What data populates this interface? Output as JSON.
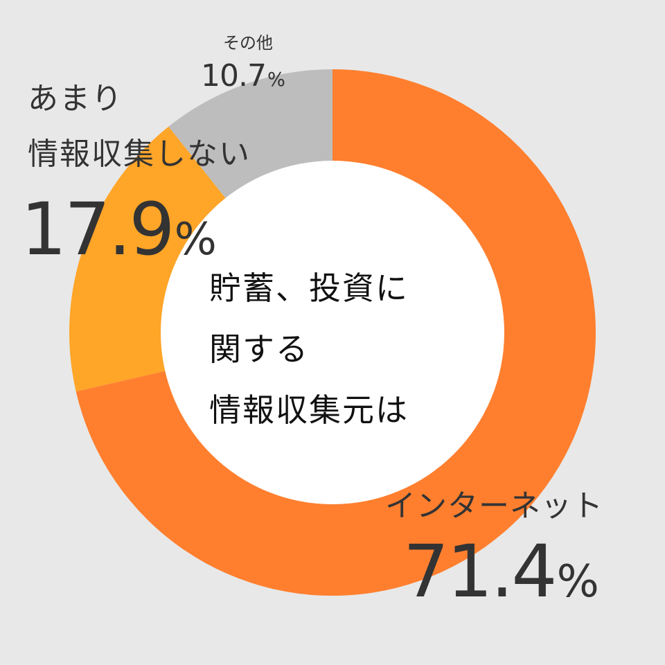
{
  "chart_data": {
    "type": "pie",
    "donut": true,
    "center_title_lines": [
      "貯蓄、投資に",
      "関する",
      "情報収集元は"
    ],
    "slices": [
      {
        "key": "internet",
        "label": "インターネット",
        "value": 71.4,
        "value_text": "71.4",
        "unit": "%",
        "color": "#ff7f2f"
      },
      {
        "key": "noinfo",
        "label_lines": [
          "あまり",
          "情報収集しない"
        ],
        "value": 17.9,
        "value_text": "17.9",
        "unit": "%",
        "color": "#ffa528"
      },
      {
        "key": "other",
        "label": "その他",
        "value": 10.7,
        "value_text": "10.7",
        "unit": "%",
        "color": "#bdbdbd"
      }
    ],
    "start": "top, clockwise",
    "background": "#e8e8e8",
    "hole_color": "#ffffff"
  }
}
